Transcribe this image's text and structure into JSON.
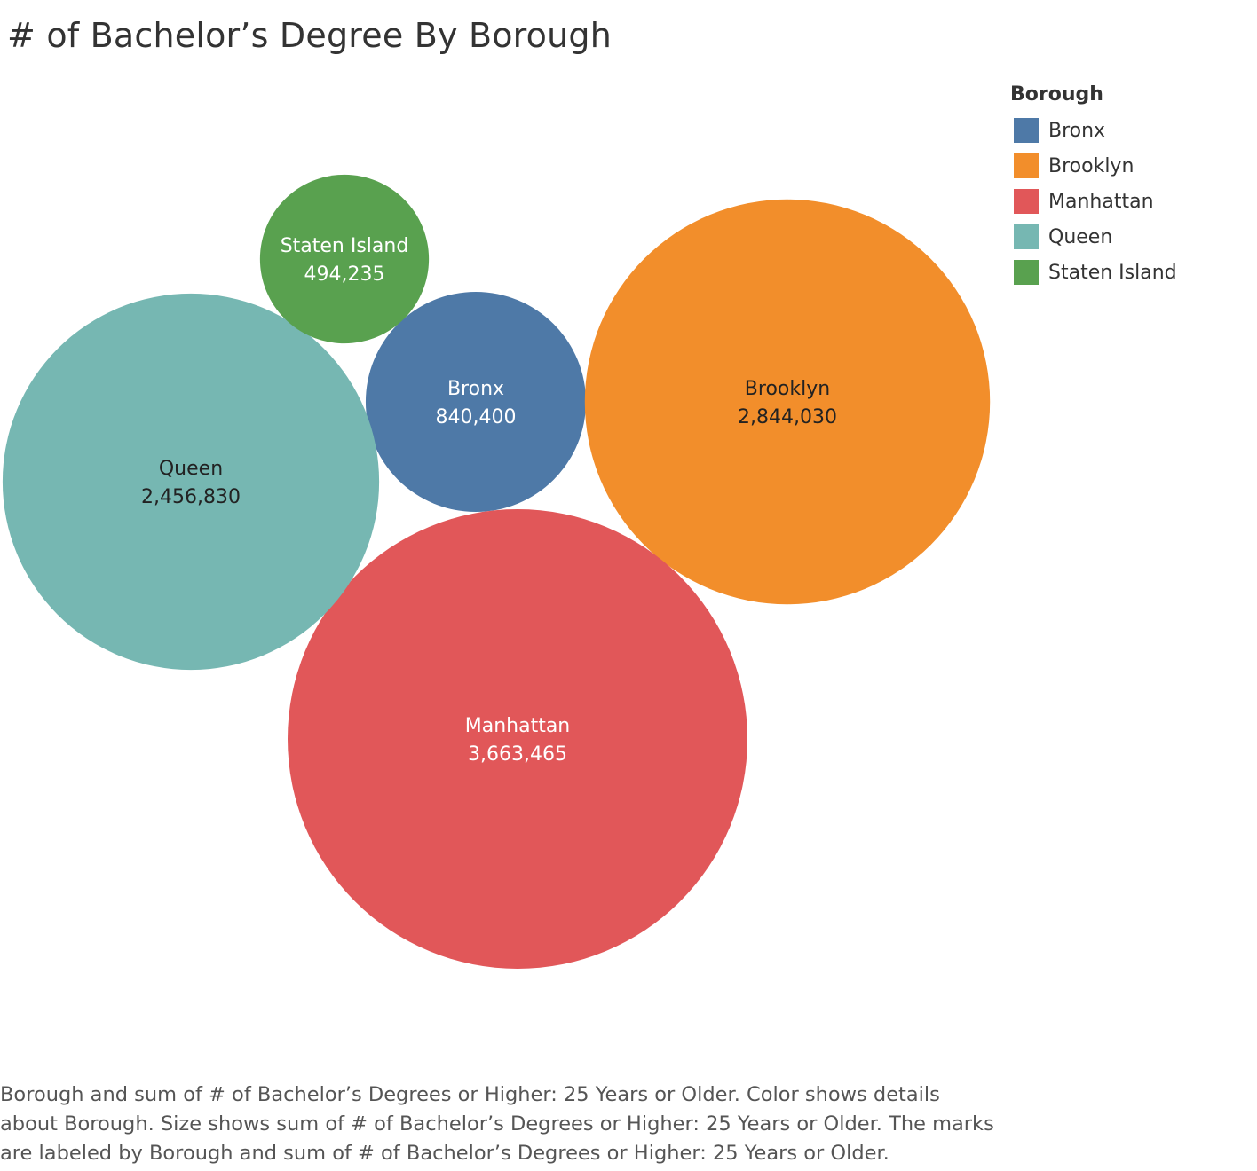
{
  "chart_data": {
    "type": "bubble",
    "title": "# of Bachelor’s Degree By Borough",
    "legend_title": "Borough",
    "legend_placement": "top-right",
    "series": [
      {
        "name": "Bronx",
        "value": 840400,
        "value_label": "840,400",
        "color": "#4e79a7",
        "label_color": "#ffffff"
      },
      {
        "name": "Brooklyn",
        "value": 2844030,
        "value_label": "2,844,030",
        "color": "#f28e2b",
        "label_color": "#222222"
      },
      {
        "name": "Manhattan",
        "value": 3663465,
        "value_label": "3,663,465",
        "color": "#e15759",
        "label_color": "#ffffff"
      },
      {
        "name": "Queen",
        "value": 2456830,
        "value_label": "2,456,830",
        "color": "#76b7b2",
        "label_color": "#222222"
      },
      {
        "name": "Staten Island",
        "value": 494235,
        "value_label": "494,235",
        "color": "#59a14f",
        "label_color": "#ffffff"
      }
    ],
    "caption": "Borough and sum of # of Bachelor’s Degrees or Higher: 25 Years or Older.  Color shows details about Borough.  Size shows sum of # of Bachelor’s Degrees or Higher: 25 Years or Older.  The marks are labeled by Borough and sum of # of Bachelor’s Degrees or Higher: 25 Years or Older."
  }
}
